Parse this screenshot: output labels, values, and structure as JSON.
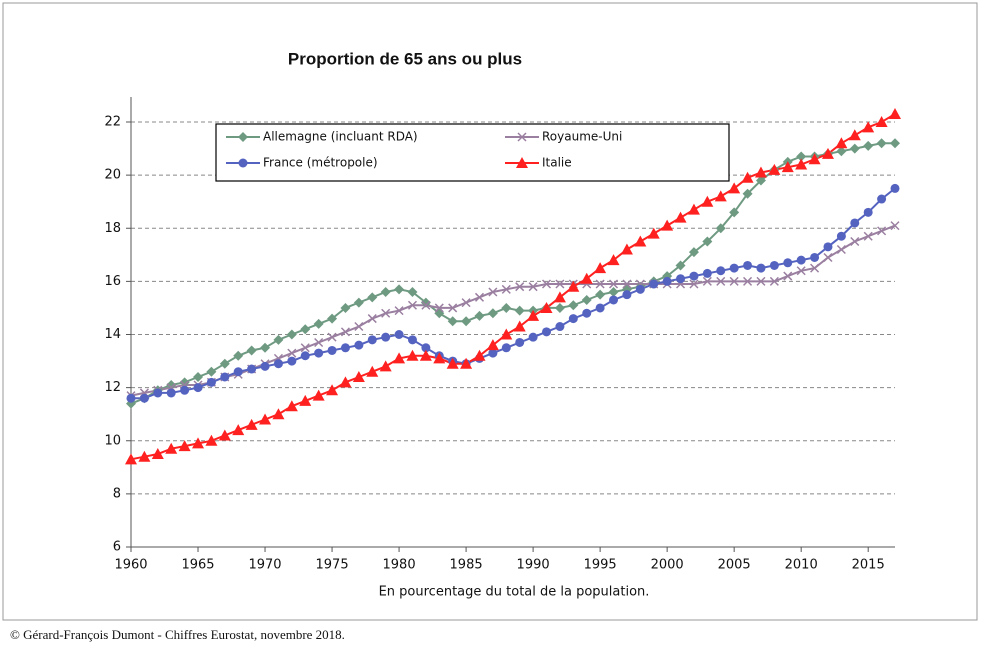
{
  "chart_data": {
    "type": "line",
    "title": "Proportion de 65 ans ou plus",
    "xlabel": "En pourcentage du total de la population.",
    "x": [
      1960,
      1961,
      1962,
      1963,
      1964,
      1965,
      1966,
      1967,
      1968,
      1969,
      1970,
      1971,
      1972,
      1973,
      1974,
      1975,
      1976,
      1977,
      1978,
      1979,
      1980,
      1981,
      1982,
      1983,
      1984,
      1985,
      1986,
      1987,
      1988,
      1989,
      1990,
      1991,
      1992,
      1993,
      1994,
      1995,
      1996,
      1997,
      1998,
      1999,
      2000,
      2001,
      2002,
      2003,
      2004,
      2005,
      2006,
      2007,
      2008,
      2009,
      2010,
      2011,
      2012,
      2013,
      2014,
      2015,
      2016,
      2017
    ],
    "xlim": [
      1960,
      2017
    ],
    "xticks": [
      1960,
      1965,
      1970,
      1975,
      1980,
      1985,
      1990,
      1995,
      2000,
      2005,
      2010,
      2015
    ],
    "ylim": [
      6,
      22
    ],
    "yticks": [
      6,
      8,
      10,
      12,
      14,
      16,
      18,
      20,
      22
    ],
    "grid": true,
    "series": [
      {
        "name": "Allemagne (incluant RDA)",
        "color": "#6f9a82",
        "marker": "diamond",
        "values": [
          11.4,
          11.6,
          11.9,
          12.1,
          12.2,
          12.4,
          12.6,
          12.9,
          13.2,
          13.4,
          13.5,
          13.8,
          14.0,
          14.2,
          14.4,
          14.6,
          15.0,
          15.2,
          15.4,
          15.6,
          15.7,
          15.6,
          15.2,
          14.8,
          14.5,
          14.5,
          14.7,
          14.8,
          15.0,
          14.9,
          14.9,
          15.0,
          15.0,
          15.1,
          15.3,
          15.5,
          15.6,
          15.7,
          15.8,
          16.0,
          16.2,
          16.6,
          17.1,
          17.5,
          18.0,
          18.6,
          19.3,
          19.8,
          20.2,
          20.5,
          20.7,
          20.7,
          20.8,
          20.9,
          21.0,
          21.1,
          21.2,
          21.2
        ]
      },
      {
        "name": "Royaume-Uni",
        "color": "#9a7fa0",
        "marker": "x",
        "values": [
          11.7,
          11.8,
          11.9,
          12.0,
          12.1,
          12.1,
          12.2,
          12.4,
          12.5,
          12.7,
          12.9,
          13.1,
          13.3,
          13.5,
          13.7,
          13.9,
          14.1,
          14.3,
          14.6,
          14.8,
          14.9,
          15.1,
          15.1,
          15.0,
          15.0,
          15.2,
          15.4,
          15.6,
          15.7,
          15.8,
          15.8,
          15.9,
          15.9,
          15.9,
          15.9,
          15.9,
          15.9,
          15.9,
          15.9,
          15.9,
          15.9,
          15.9,
          15.9,
          16.0,
          16.0,
          16.0,
          16.0,
          16.0,
          16.0,
          16.2,
          16.4,
          16.5,
          16.9,
          17.2,
          17.5,
          17.7,
          17.9,
          18.1
        ]
      },
      {
        "name": "France (métropole)",
        "color": "#5563c0",
        "marker": "circle",
        "values": [
          11.6,
          11.6,
          11.8,
          11.8,
          11.9,
          12.0,
          12.2,
          12.4,
          12.6,
          12.7,
          12.8,
          12.9,
          13.0,
          13.2,
          13.3,
          13.4,
          13.5,
          13.6,
          13.8,
          13.9,
          14.0,
          13.8,
          13.5,
          13.2,
          13.0,
          12.9,
          13.1,
          13.3,
          13.5,
          13.7,
          13.9,
          14.1,
          14.3,
          14.6,
          14.8,
          15.0,
          15.3,
          15.5,
          15.7,
          15.9,
          16.0,
          16.1,
          16.2,
          16.3,
          16.4,
          16.5,
          16.6,
          16.5,
          16.6,
          16.7,
          16.8,
          16.9,
          17.3,
          17.7,
          18.2,
          18.6,
          19.1,
          19.5
        ]
      },
      {
        "name": "Italie",
        "color": "#ff2020",
        "marker": "triangle",
        "values": [
          9.3,
          9.4,
          9.5,
          9.7,
          9.8,
          9.9,
          10.0,
          10.2,
          10.4,
          10.6,
          10.8,
          11.0,
          11.3,
          11.5,
          11.7,
          11.9,
          12.2,
          12.4,
          12.6,
          12.8,
          13.1,
          13.2,
          13.2,
          13.1,
          12.9,
          12.9,
          13.2,
          13.6,
          14.0,
          14.3,
          14.7,
          15.0,
          15.4,
          15.8,
          16.1,
          16.5,
          16.8,
          17.2,
          17.5,
          17.8,
          18.1,
          18.4,
          18.7,
          19.0,
          19.2,
          19.5,
          19.9,
          20.1,
          20.2,
          20.3,
          20.4,
          20.6,
          20.8,
          21.2,
          21.5,
          21.8,
          22.0,
          22.3
        ]
      }
    ]
  },
  "source": "© Gérard-François Dumont - Chiffres  Eurostat, novembre 2018."
}
